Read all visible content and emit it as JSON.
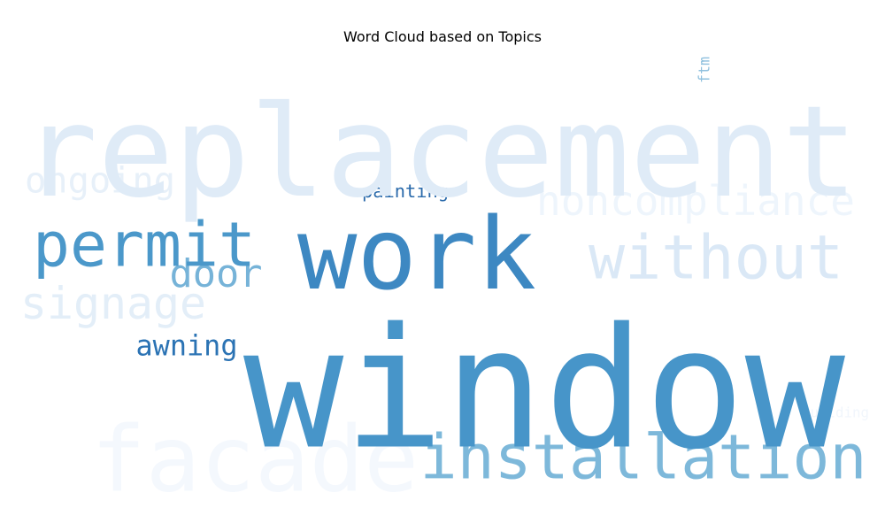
{
  "chart_data": {
    "type": "wordcloud",
    "title": "Word Cloud based on Topics",
    "colormap": "Blues",
    "background": "#ffffff",
    "words": [
      {
        "text": "window",
        "weight": 1.0,
        "color": "#4795c9"
      },
      {
        "text": "replacement",
        "weight": 0.9,
        "color": "#dfebf7"
      },
      {
        "text": "work",
        "weight": 0.7,
        "color": "#3d88c2"
      },
      {
        "text": "facade",
        "weight": 0.65,
        "color": "#f4f8fd"
      },
      {
        "text": "installation",
        "weight": 0.5,
        "color": "#7db8da"
      },
      {
        "text": "permit",
        "weight": 0.42,
        "color": "#4b98ca"
      },
      {
        "text": "without",
        "weight": 0.4,
        "color": "#dae8f6"
      },
      {
        "text": "noncompliance",
        "weight": 0.25,
        "color": "#eef5fc"
      },
      {
        "text": "signage",
        "weight": 0.25,
        "color": "#e3eef8"
      },
      {
        "text": "ongoing",
        "weight": 0.2,
        "color": "#e7f0f9"
      },
      {
        "text": "door",
        "weight": 0.2,
        "color": "#76b3d8"
      },
      {
        "text": "awning",
        "weight": 0.15,
        "color": "#2b73b4"
      },
      {
        "text": "painting",
        "weight": 0.1,
        "color": "#2a6aab"
      },
      {
        "text": "ftm",
        "weight": 0.08,
        "color": "#8fc0de"
      },
      {
        "text": "building",
        "weight": 0.06,
        "color": "#f1f6fc"
      }
    ]
  }
}
